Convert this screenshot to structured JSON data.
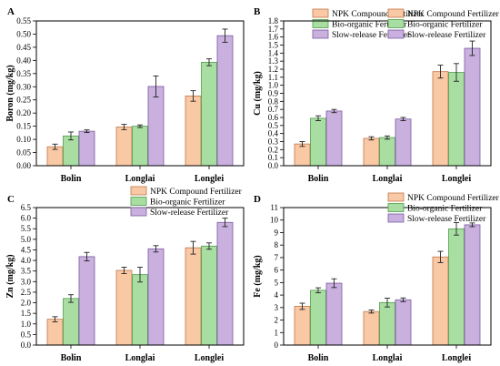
{
  "colors": {
    "npk_fill": "#f9c8a4",
    "npk_edge": "#c07848",
    "bio_fill": "#a9dea2",
    "bio_edge": "#4f9c4c",
    "slow_fill": "#c9b0df",
    "slow_edge": "#7a5a9e"
  },
  "chart_data": [
    {
      "panel": "A",
      "type": "bar",
      "ylabel": "Boron (mg/kg)",
      "categories": [
        "Bolin",
        "Longlai",
        "Longlei"
      ],
      "ylim": [
        0,
        0.55
      ],
      "yticks": [
        "0.00",
        "0.05",
        "0.10",
        "0.15",
        "0.20",
        "0.25",
        "0.30",
        "0.35",
        "0.40",
        "0.45",
        "0.50",
        "0.55"
      ],
      "legend_position": "top-right",
      "series": [
        {
          "name": "NPK Compound Fertilizer",
          "values": [
            0.072,
            0.147,
            0.265
          ],
          "errors": [
            0.01,
            0.01,
            0.02
          ]
        },
        {
          "name": "Bio-organic Fertilizer",
          "values": [
            0.113,
            0.15,
            0.393
          ],
          "errors": [
            0.015,
            0.005,
            0.013
          ]
        },
        {
          "name": "Slow-release Fertilizer",
          "values": [
            0.131,
            0.301,
            0.494
          ],
          "errors": [
            0.005,
            0.04,
            0.025
          ]
        }
      ]
    },
    {
      "panel": "B",
      "type": "bar",
      "ylabel": "Cu (mg/kg)",
      "categories": [
        "Bolin",
        "Longlai",
        "Longlei"
      ],
      "ylim": [
        0,
        1.8
      ],
      "yticks": [
        "0.0",
        "0.1",
        "0.2",
        "0.3",
        "0.4",
        "0.5",
        "0.6",
        "0.7",
        "0.8",
        "0.9",
        "1.0",
        "1.1",
        "1.2",
        "1.3",
        "1.4",
        "1.5",
        "1.6",
        "1.7",
        "1.8"
      ],
      "legend_position": "top-right",
      "series": [
        {
          "name": "NPK Compound Fertilizer",
          "values": [
            0.27,
            0.34,
            1.17
          ],
          "errors": [
            0.03,
            0.02,
            0.08
          ]
        },
        {
          "name": "Bio-organic Fertilizer",
          "values": [
            0.59,
            0.35,
            1.16
          ],
          "errors": [
            0.03,
            0.02,
            0.11
          ]
        },
        {
          "name": "Slow-release Fertilizer",
          "values": [
            0.68,
            0.58,
            1.46
          ],
          "errors": [
            0.02,
            0.02,
            0.09
          ]
        }
      ]
    },
    {
      "panel": "C",
      "type": "bar",
      "ylabel": "Zn (mg/kg)",
      "categories": [
        "Bolin",
        "Longlai",
        "Longlei"
      ],
      "ylim": [
        0,
        6.5
      ],
      "yticks": [
        "0.0",
        "0.5",
        "1.0",
        "1.5",
        "2.0",
        "2.5",
        "3.0",
        "3.5",
        "4.0",
        "4.5",
        "5.0",
        "5.5",
        "6.0",
        "6.5"
      ],
      "legend_position": "top-right",
      "series": [
        {
          "name": "NPK Compound Fertilizer",
          "values": [
            1.22,
            3.53,
            4.6
          ],
          "errors": [
            0.12,
            0.15,
            0.3
          ]
        },
        {
          "name": "Bio-organic Fertilizer",
          "values": [
            2.2,
            3.33,
            4.68
          ],
          "errors": [
            0.18,
            0.35,
            0.15
          ]
        },
        {
          "name": "Slow-release Fertilizer",
          "values": [
            4.18,
            4.55,
            5.8
          ],
          "errors": [
            0.2,
            0.15,
            0.2
          ]
        }
      ]
    },
    {
      "panel": "D",
      "type": "bar",
      "ylabel": "Fe (mg/kg)",
      "categories": [
        "Bolin",
        "Longlai",
        "Longlei"
      ],
      "ylim": [
        0,
        11
      ],
      "yticks": [
        "0",
        "1",
        "2",
        "3",
        "4",
        "5",
        "6",
        "7",
        "8",
        "9",
        "10",
        "11"
      ],
      "legend_position": "top-right",
      "series": [
        {
          "name": "NPK Compound Fertilizer",
          "values": [
            3.1,
            2.68,
            7.05
          ],
          "errors": [
            0.25,
            0.12,
            0.45
          ]
        },
        {
          "name": "Bio-organic Fertilizer",
          "values": [
            4.38,
            3.4,
            9.3
          ],
          "errors": [
            0.2,
            0.35,
            0.5
          ]
        },
        {
          "name": "Slow-release Fertilizer",
          "values": [
            4.95,
            3.62,
            9.62
          ],
          "errors": [
            0.35,
            0.15,
            0.15
          ]
        }
      ]
    }
  ]
}
